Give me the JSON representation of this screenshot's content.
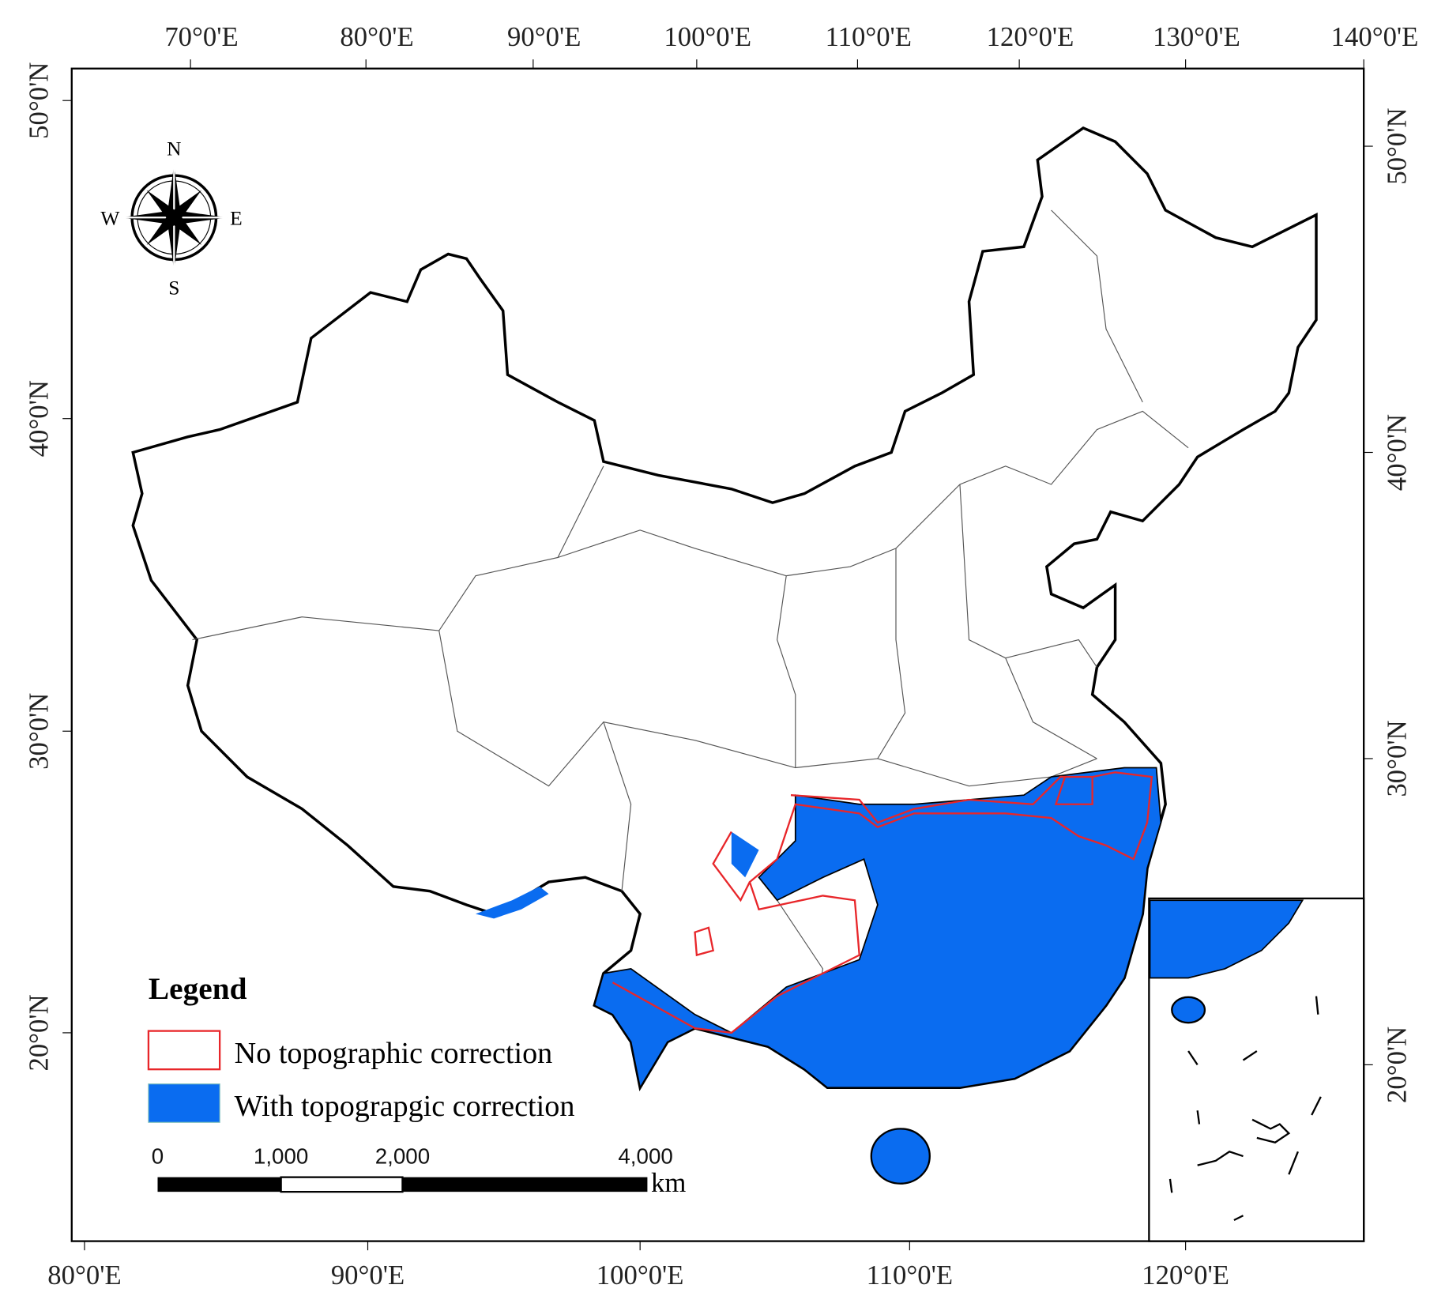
{
  "map": {
    "top_axis_labels": [
      "70°0'E",
      "80°0'E",
      "90°0'E",
      "100°0'E",
      "110°0'E",
      "120°0'E",
      "130°0'E",
      "140°0'E"
    ],
    "bottom_axis_labels": [
      "80°0'E",
      "90°0'E",
      "100°0'E",
      "110°0'E",
      "120°0'E"
    ],
    "left_axis_labels": [
      "50°0'N",
      "40°0'N",
      "30°0'N",
      "20°0'N"
    ],
    "right_axis_labels": [
      "50°0'N",
      "40°0'N",
      "30°0'N",
      "20°0'N"
    ],
    "compass": {
      "n": "N",
      "e": "E",
      "s": "S",
      "w": "W"
    },
    "legend": {
      "title": "Legend",
      "items": [
        "No topographic correction",
        "With topograpgic correction"
      ]
    },
    "scale_bar": {
      "labels": [
        "0",
        "1,000",
        "2,000",
        "4,000"
      ],
      "unit": "km"
    }
  }
}
